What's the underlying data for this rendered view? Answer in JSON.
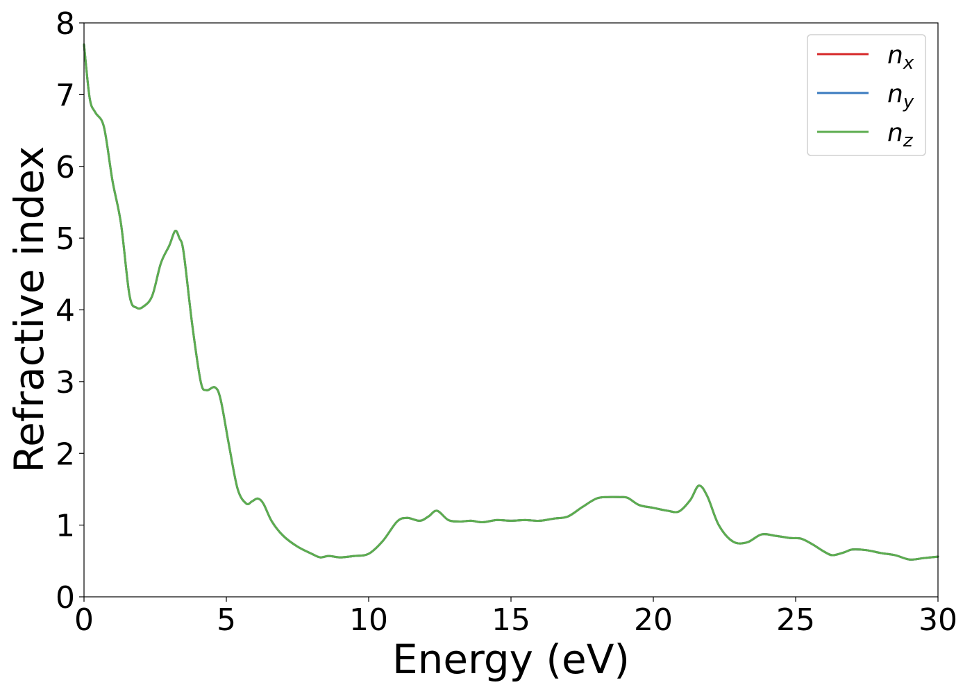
{
  "chart_data": {
    "type": "line",
    "title": "",
    "xlabel": "Energy (eV)",
    "ylabel": "Refractive index",
    "xlim": [
      0,
      30
    ],
    "ylim": [
      0,
      8
    ],
    "xticks": [
      0,
      5,
      10,
      15,
      20,
      25,
      30
    ],
    "yticks": [
      0,
      1,
      2,
      3,
      4,
      5,
      6,
      7,
      8
    ],
    "xtick_labels": [
      "0",
      "5",
      "10",
      "15",
      "20",
      "25",
      "30"
    ],
    "ytick_labels": [
      "0",
      "1",
      "2",
      "3",
      "4",
      "5",
      "6",
      "7",
      "8"
    ],
    "grid": false,
    "legend": "top-right",
    "x": [
      0,
      0.2,
      0.4,
      0.7,
      1.0,
      1.3,
      1.6,
      1.85,
      2.1,
      2.4,
      2.7,
      3.0,
      3.2,
      3.35,
      3.5,
      3.8,
      4.1,
      4.3,
      4.6,
      4.8,
      5.1,
      5.4,
      5.7,
      5.9,
      6.1,
      6.3,
      6.6,
      7.0,
      7.5,
      8.0,
      8.3,
      8.6,
      9.0,
      9.5,
      10.0,
      10.5,
      11.0,
      11.35,
      11.8,
      12.1,
      12.4,
      12.8,
      13.2,
      13.6,
      14.0,
      14.5,
      15.0,
      15.5,
      16.0,
      16.5,
      17.0,
      17.5,
      18.0,
      18.4,
      18.8,
      19.1,
      19.5,
      20.0,
      20.5,
      20.9,
      21.3,
      21.6,
      21.9,
      22.3,
      22.8,
      23.3,
      23.8,
      24.3,
      24.8,
      25.2,
      25.6,
      26.0,
      26.3,
      26.7,
      27.0,
      27.5,
      28.0,
      28.5,
      29.0,
      29.5,
      30.0
    ],
    "series": [
      {
        "name": "n_x",
        "label_base": "n",
        "label_sub": "x",
        "color": "#d62728",
        "values": [
          7.7,
          6.95,
          6.75,
          6.55,
          5.8,
          5.2,
          4.2,
          4.03,
          4.05,
          4.2,
          4.65,
          4.9,
          5.1,
          5.0,
          4.8,
          3.8,
          3.0,
          2.88,
          2.92,
          2.75,
          2.1,
          1.5,
          1.3,
          1.33,
          1.37,
          1.3,
          1.05,
          0.85,
          0.7,
          0.6,
          0.55,
          0.57,
          0.55,
          0.57,
          0.6,
          0.78,
          1.05,
          1.1,
          1.06,
          1.12,
          1.2,
          1.07,
          1.05,
          1.06,
          1.04,
          1.07,
          1.06,
          1.07,
          1.06,
          1.09,
          1.12,
          1.25,
          1.37,
          1.39,
          1.39,
          1.38,
          1.28,
          1.24,
          1.2,
          1.19,
          1.35,
          1.55,
          1.4,
          1.0,
          0.77,
          0.76,
          0.87,
          0.85,
          0.82,
          0.81,
          0.73,
          0.63,
          0.58,
          0.62,
          0.66,
          0.65,
          0.61,
          0.58,
          0.52,
          0.54,
          0.56
        ]
      },
      {
        "name": "n_y",
        "label_base": "n",
        "label_sub": "y",
        "color": "#3a7bbf",
        "values": [
          7.7,
          6.95,
          6.75,
          6.55,
          5.8,
          5.2,
          4.2,
          4.03,
          4.05,
          4.2,
          4.65,
          4.9,
          5.1,
          5.0,
          4.8,
          3.8,
          3.0,
          2.88,
          2.92,
          2.75,
          2.1,
          1.5,
          1.3,
          1.33,
          1.37,
          1.3,
          1.05,
          0.85,
          0.7,
          0.6,
          0.55,
          0.57,
          0.55,
          0.57,
          0.6,
          0.78,
          1.05,
          1.1,
          1.06,
          1.12,
          1.2,
          1.07,
          1.05,
          1.06,
          1.04,
          1.07,
          1.06,
          1.07,
          1.06,
          1.09,
          1.12,
          1.25,
          1.37,
          1.39,
          1.39,
          1.38,
          1.28,
          1.24,
          1.2,
          1.19,
          1.35,
          1.55,
          1.4,
          1.0,
          0.77,
          0.76,
          0.87,
          0.85,
          0.82,
          0.81,
          0.73,
          0.63,
          0.58,
          0.62,
          0.66,
          0.65,
          0.61,
          0.58,
          0.52,
          0.54,
          0.56
        ]
      },
      {
        "name": "n_z",
        "label_base": "n",
        "label_sub": "z",
        "color": "#5cad4f",
        "values": [
          7.7,
          6.95,
          6.75,
          6.55,
          5.8,
          5.2,
          4.2,
          4.03,
          4.05,
          4.2,
          4.65,
          4.9,
          5.1,
          5.0,
          4.8,
          3.8,
          3.0,
          2.88,
          2.92,
          2.75,
          2.1,
          1.5,
          1.3,
          1.33,
          1.37,
          1.3,
          1.05,
          0.85,
          0.7,
          0.6,
          0.55,
          0.57,
          0.55,
          0.57,
          0.6,
          0.78,
          1.05,
          1.1,
          1.06,
          1.12,
          1.2,
          1.07,
          1.05,
          1.06,
          1.04,
          1.07,
          1.06,
          1.07,
          1.06,
          1.09,
          1.12,
          1.25,
          1.37,
          1.39,
          1.39,
          1.38,
          1.28,
          1.24,
          1.2,
          1.19,
          1.35,
          1.55,
          1.4,
          1.0,
          0.77,
          0.76,
          0.87,
          0.85,
          0.82,
          0.81,
          0.73,
          0.63,
          0.58,
          0.62,
          0.66,
          0.65,
          0.61,
          0.58,
          0.52,
          0.54,
          0.56
        ]
      }
    ]
  }
}
